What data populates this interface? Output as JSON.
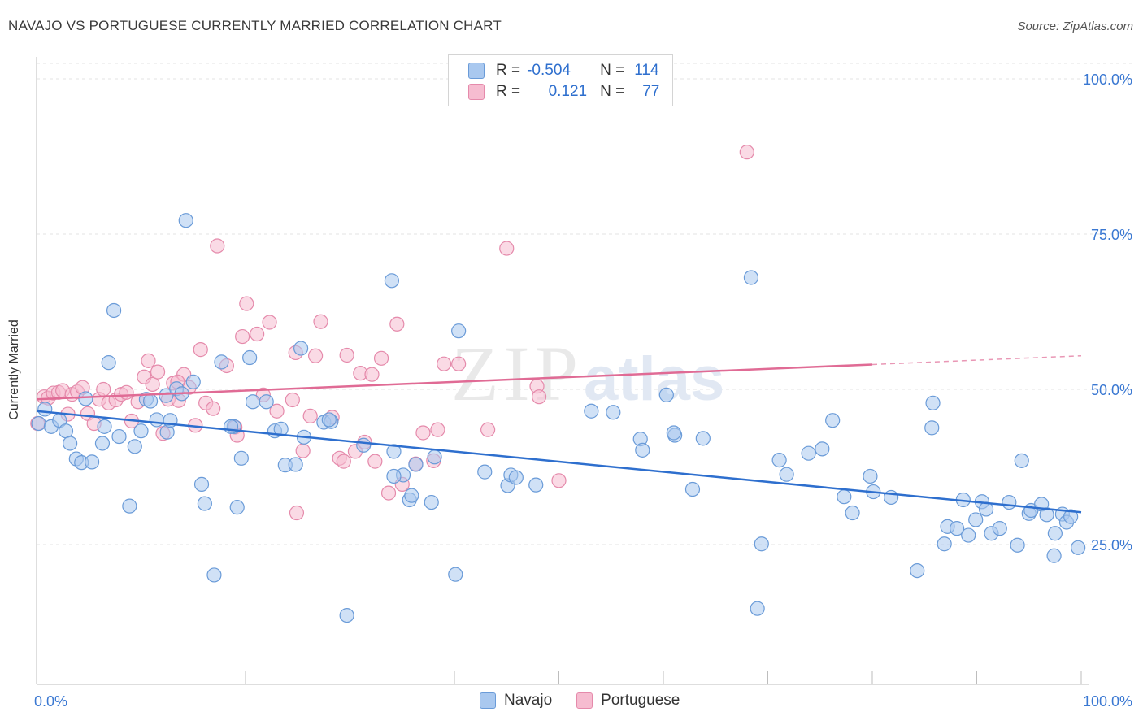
{
  "header": {
    "title": "NAVAJO VS PORTUGUESE CURRENTLY MARRIED CORRELATION CHART",
    "source": "Source: ZipAtlas.com"
  },
  "watermark": {
    "zip": "ZIP",
    "atlas": "atlas"
  },
  "legend": {
    "rows": [
      {
        "r_label": "R =",
        "r_value": "-0.504",
        "n_label": "N =",
        "n_value": "114"
      },
      {
        "r_label": "R =",
        "r_value": "0.121",
        "n_label": "N =",
        "n_value": "77"
      }
    ]
  },
  "colors": {
    "navajo_fill": "#a9c8ef",
    "navajo_stroke": "#6a9bd8",
    "navajo_line": "#2e6fce",
    "portuguese_fill": "#f6bcd0",
    "portuguese_stroke": "#e58aab",
    "portuguese_line": "#e06b95",
    "axis_label": "#3a78d2",
    "grid": "#e3e3e3"
  },
  "chart_data": {
    "type": "scatter",
    "title": "NAVAJO VS PORTUGUESE CURRENTLY MARRIED CORRELATION CHART",
    "xlabel": "",
    "ylabel": "Currently Married",
    "xlim": [
      0,
      100
    ],
    "ylim": [
      5,
      105
    ],
    "x_tick_labels": [
      "0.0%",
      "100.0%"
    ],
    "y_ticks": [
      25,
      50,
      75,
      100
    ],
    "y_tick_labels": [
      "25.0%",
      "50.0%",
      "75.0%",
      "100.0%"
    ],
    "grid": "horizontal dashed",
    "legend_placement": "top-center",
    "series": [
      {
        "name": "Navajo",
        "r": -0.504,
        "n": 114,
        "trend": {
          "x": [
            0,
            100
          ],
          "y": [
            46.5,
            30.2
          ]
        },
        "points": [
          [
            0.2,
            44.5
          ],
          [
            0.8,
            46.8
          ],
          [
            1.4,
            44
          ],
          [
            2.2,
            45
          ],
          [
            2.8,
            43.3
          ],
          [
            3.2,
            41.3
          ],
          [
            3.8,
            38.8
          ],
          [
            4.3,
            38.2
          ],
          [
            4.7,
            48.5
          ],
          [
            5.3,
            38.3
          ],
          [
            6.3,
            41.3
          ],
          [
            6.9,
            54.3
          ],
          [
            7.4,
            62.7
          ],
          [
            7.9,
            42.4
          ],
          [
            8.9,
            31.2
          ],
          [
            9.4,
            40.8
          ],
          [
            10.0,
            43.3
          ],
          [
            10.5,
            48.4
          ],
          [
            10.9,
            48.1
          ],
          [
            11.5,
            45.1
          ],
          [
            12.4,
            49.0
          ],
          [
            12.5,
            43.1
          ],
          [
            12.8,
            45.0
          ],
          [
            13.4,
            50.1
          ],
          [
            14.3,
            77.2
          ],
          [
            15.0,
            51.2
          ],
          [
            15.8,
            34.7
          ],
          [
            16.1,
            31.6
          ],
          [
            17.0,
            20.1
          ],
          [
            17.7,
            54.4
          ],
          [
            18.9,
            44.0
          ],
          [
            19.2,
            31.0
          ],
          [
            19.6,
            38.9
          ],
          [
            20.4,
            55.1
          ],
          [
            20.7,
            48.0
          ],
          [
            22.0,
            48.0
          ],
          [
            22.8,
            43.3
          ],
          [
            23.4,
            43.6
          ],
          [
            23.8,
            37.8
          ],
          [
            24.8,
            37.9
          ],
          [
            25.3,
            56.6
          ],
          [
            25.6,
            42.3
          ],
          [
            27.5,
            44.7
          ],
          [
            28.2,
            44.8
          ],
          [
            29.7,
            13.6
          ],
          [
            31.3,
            41.0
          ],
          [
            34.0,
            67.5
          ],
          [
            34.2,
            40.0
          ],
          [
            35.1,
            36.2
          ],
          [
            35.7,
            32.2
          ],
          [
            35.9,
            32.9
          ],
          [
            36.3,
            37.9
          ],
          [
            37.8,
            31.8
          ],
          [
            38.1,
            39.1
          ],
          [
            40.1,
            20.2
          ],
          [
            40.4,
            59.4
          ],
          [
            42.9,
            36.7
          ],
          [
            45.1,
            34.5
          ],
          [
            45.4,
            36.2
          ],
          [
            45.9,
            35.8
          ],
          [
            47.8,
            34.6
          ],
          [
            53.1,
            46.5
          ],
          [
            55.2,
            46.3
          ],
          [
            57.8,
            42.0
          ],
          [
            58.0,
            40.2
          ],
          [
            60.3,
            49.1
          ],
          [
            61.1,
            42.6
          ],
          [
            62.8,
            33.9
          ],
          [
            63.8,
            42.1
          ],
          [
            68.4,
            68.0
          ],
          [
            69.0,
            14.7
          ],
          [
            69.4,
            25.1
          ],
          [
            71.1,
            38.6
          ],
          [
            71.8,
            36.3
          ],
          [
            73.9,
            39.7
          ],
          [
            75.2,
            40.4
          ],
          [
            76.2,
            45.0
          ],
          [
            77.3,
            32.7
          ],
          [
            78.1,
            30.1
          ],
          [
            79.8,
            36.0
          ],
          [
            80.1,
            33.5
          ],
          [
            81.8,
            32.6
          ],
          [
            84.3,
            20.8
          ],
          [
            85.7,
            43.8
          ],
          [
            85.8,
            47.8
          ],
          [
            86.9,
            25.1
          ],
          [
            87.2,
            27.9
          ],
          [
            88.1,
            27.6
          ],
          [
            88.7,
            32.2
          ],
          [
            89.2,
            26.5
          ],
          [
            89.9,
            29.0
          ],
          [
            90.5,
            31.9
          ],
          [
            90.9,
            30.7
          ],
          [
            91.4,
            26.8
          ],
          [
            92.2,
            27.6
          ],
          [
            93.1,
            31.8
          ],
          [
            93.9,
            24.9
          ],
          [
            94.3,
            38.5
          ],
          [
            95.0,
            30.0
          ],
          [
            95.2,
            30.5
          ],
          [
            96.2,
            31.5
          ],
          [
            96.7,
            29.8
          ],
          [
            97.4,
            23.2
          ],
          [
            97.5,
            26.8
          ],
          [
            98.2,
            29.9
          ],
          [
            98.6,
            28.6
          ],
          [
            99.0,
            29.5
          ],
          [
            99.7,
            24.5
          ],
          [
            34.2,
            36.0
          ],
          [
            18.6,
            44.0
          ],
          [
            6.5,
            44.0
          ],
          [
            28.0,
            45.1
          ],
          [
            13.9,
            49.3
          ],
          [
            61.0,
            43.0
          ]
        ]
      },
      {
        "name": "Portuguese",
        "r": 0.121,
        "n": 77,
        "trend": {
          "x": [
            0,
            80
          ],
          "y": [
            48.4,
            54.0
          ]
        },
        "trend_dashed": {
          "x": [
            80,
            100
          ],
          "y": [
            54.0,
            55.4
          ]
        },
        "points": [
          [
            0.1,
            44.5
          ],
          [
            0.7,
            48.8
          ],
          [
            1.1,
            48.6
          ],
          [
            1.6,
            49.4
          ],
          [
            2.1,
            49.5
          ],
          [
            2.5,
            49.8
          ],
          [
            3.0,
            46.0
          ],
          [
            3.4,
            49.2
          ],
          [
            3.9,
            49.6
          ],
          [
            4.4,
            50.3
          ],
          [
            4.9,
            46.1
          ],
          [
            5.5,
            44.5
          ],
          [
            6.0,
            48.4
          ],
          [
            6.4,
            50.0
          ],
          [
            6.9,
            47.8
          ],
          [
            7.6,
            48.3
          ],
          [
            8.1,
            49.2
          ],
          [
            8.6,
            49.5
          ],
          [
            9.1,
            44.9
          ],
          [
            9.7,
            48.0
          ],
          [
            10.3,
            52.0
          ],
          [
            10.7,
            54.6
          ],
          [
            11.1,
            50.8
          ],
          [
            11.6,
            52.8
          ],
          [
            12.1,
            42.9
          ],
          [
            12.6,
            48.4
          ],
          [
            13.1,
            51.0
          ],
          [
            13.6,
            48.2
          ],
          [
            14.1,
            52.4
          ],
          [
            14.6,
            50.3
          ],
          [
            15.2,
            44.2
          ],
          [
            15.7,
            56.4
          ],
          [
            16.2,
            47.8
          ],
          [
            16.9,
            46.9
          ],
          [
            17.3,
            73.1
          ],
          [
            18.2,
            53.8
          ],
          [
            19.0,
            43.9
          ],
          [
            19.2,
            42.6
          ],
          [
            19.7,
            58.5
          ],
          [
            20.1,
            63.8
          ],
          [
            21.1,
            58.9
          ],
          [
            21.7,
            49.1
          ],
          [
            22.3,
            60.8
          ],
          [
            23.0,
            46.5
          ],
          [
            24.5,
            48.3
          ],
          [
            24.8,
            55.9
          ],
          [
            25.5,
            40.1
          ],
          [
            26.2,
            45.7
          ],
          [
            26.7,
            55.4
          ],
          [
            27.2,
            60.9
          ],
          [
            28.3,
            45.5
          ],
          [
            29.0,
            38.9
          ],
          [
            29.4,
            38.4
          ],
          [
            29.7,
            55.5
          ],
          [
            30.5,
            40.0
          ],
          [
            31.0,
            52.6
          ],
          [
            31.4,
            41.5
          ],
          [
            32.1,
            52.4
          ],
          [
            32.4,
            38.4
          ],
          [
            33.0,
            55.0
          ],
          [
            33.7,
            33.3
          ],
          [
            34.5,
            60.5
          ],
          [
            35.0,
            34.7
          ],
          [
            36.3,
            38.0
          ],
          [
            37.0,
            43.0
          ],
          [
            38.0,
            38.5
          ],
          [
            38.4,
            43.5
          ],
          [
            39.0,
            54.1
          ],
          [
            40.4,
            54.1
          ],
          [
            43.2,
            43.5
          ],
          [
            45.0,
            72.7
          ],
          [
            47.9,
            50.5
          ],
          [
            48.1,
            48.8
          ],
          [
            50.0,
            35.3
          ],
          [
            68.0,
            88.2
          ],
          [
            24.9,
            30.1
          ],
          [
            13.5,
            51.2
          ]
        ]
      }
    ]
  }
}
